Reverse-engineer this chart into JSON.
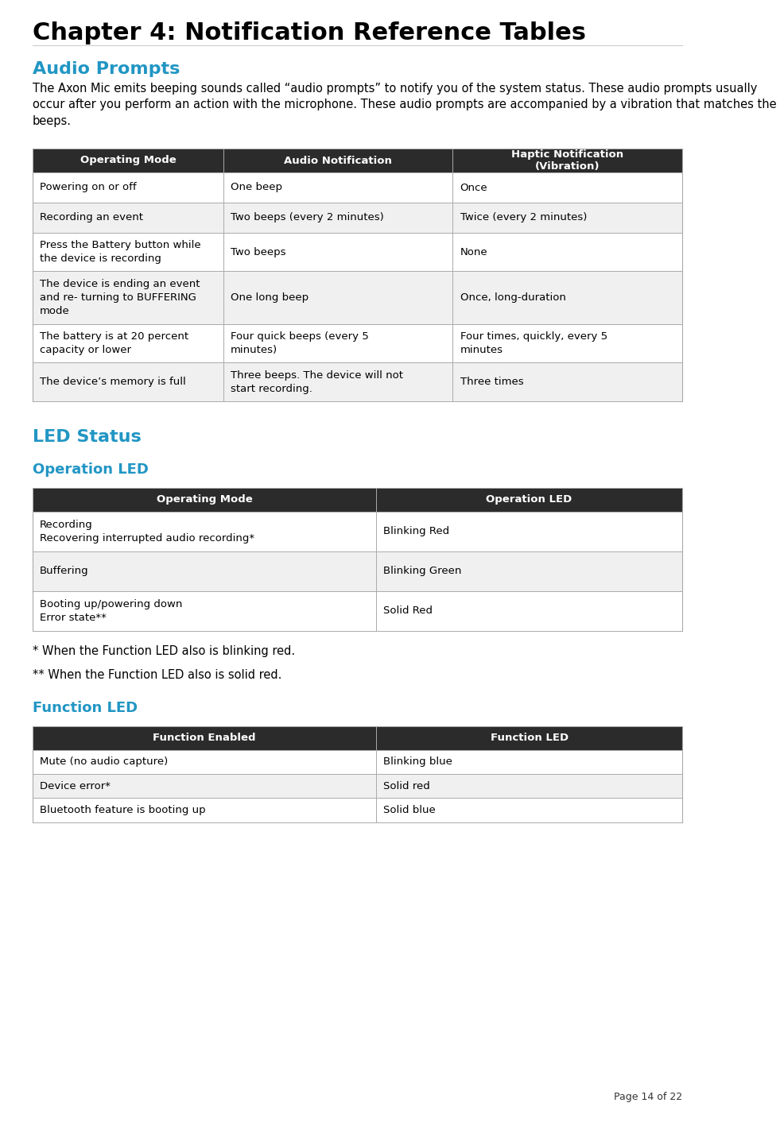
{
  "page_title": "Chapter 4: Notification Reference Tables",
  "section1_title": "Audio Prompts",
  "section1_body": "The Axon Mic emits beeping sounds called “audio prompts” to notify you of the system status. These audio prompts usually occur after you perform an action with the microphone. These audio prompts are accompanied by a vibration that matches the beeps.",
  "audio_table_headers": [
    "Operating Mode",
    "Audio Notification",
    "Haptic Notification\n(Vibration)"
  ],
  "audio_table_rows": [
    [
      "Powering on or off",
      "One beep",
      "Once"
    ],
    [
      "Recording an event",
      "Two beeps (every 2 minutes)",
      "Twice (every 2 minutes)"
    ],
    [
      "Press the Battery button while\nthe device is recording",
      "Two beeps",
      "None"
    ],
    [
      "The device is ending an event\nand re- turning to BUFFERING\nmode",
      "One long beep",
      "Once, long-duration"
    ],
    [
      "The battery is at 20 percent\ncapacity or lower",
      "Four quick beeps (every 5\nminutes)",
      "Four times, quickly, every 5\nminutes"
    ],
    [
      "The device’s memory is full",
      "Three beeps. The device will not\nstart recording.",
      "Three times"
    ]
  ],
  "section2_title": "LED Status",
  "section2_sub1": "Operation LED",
  "operation_table_headers": [
    "Operating Mode",
    "Operation LED"
  ],
  "operation_table_rows": [
    [
      "Recording\nRecovering interrupted audio recording*",
      "Blinking Red"
    ],
    [
      "Buffering",
      "Blinking Green"
    ],
    [
      "Booting up/powering down\nError state**",
      "Solid Red"
    ]
  ],
  "footnote1": "* When the Function LED also is blinking red.",
  "footnote2": "** When the Function LED also is solid red.",
  "section2_sub2": "Function LED",
  "function_table_headers": [
    "Function Enabled",
    "Function LED"
  ],
  "function_table_rows": [
    [
      "Mute (no audio capture)",
      "Blinking blue"
    ],
    [
      "Device error*",
      "Solid red"
    ],
    [
      "Bluetooth feature is booting up",
      "Solid blue"
    ]
  ],
  "page_footer": "Page 14 of 22",
  "header_bg": "#2b2b2b",
  "header_fg": "#ffffff",
  "row_bg_odd": "#ffffff",
  "row_bg_even": "#f5f5f5",
  "border_color": "#aaaaaa",
  "title_color": "#000000",
  "section_color": "#2196c4",
  "body_color": "#000000"
}
